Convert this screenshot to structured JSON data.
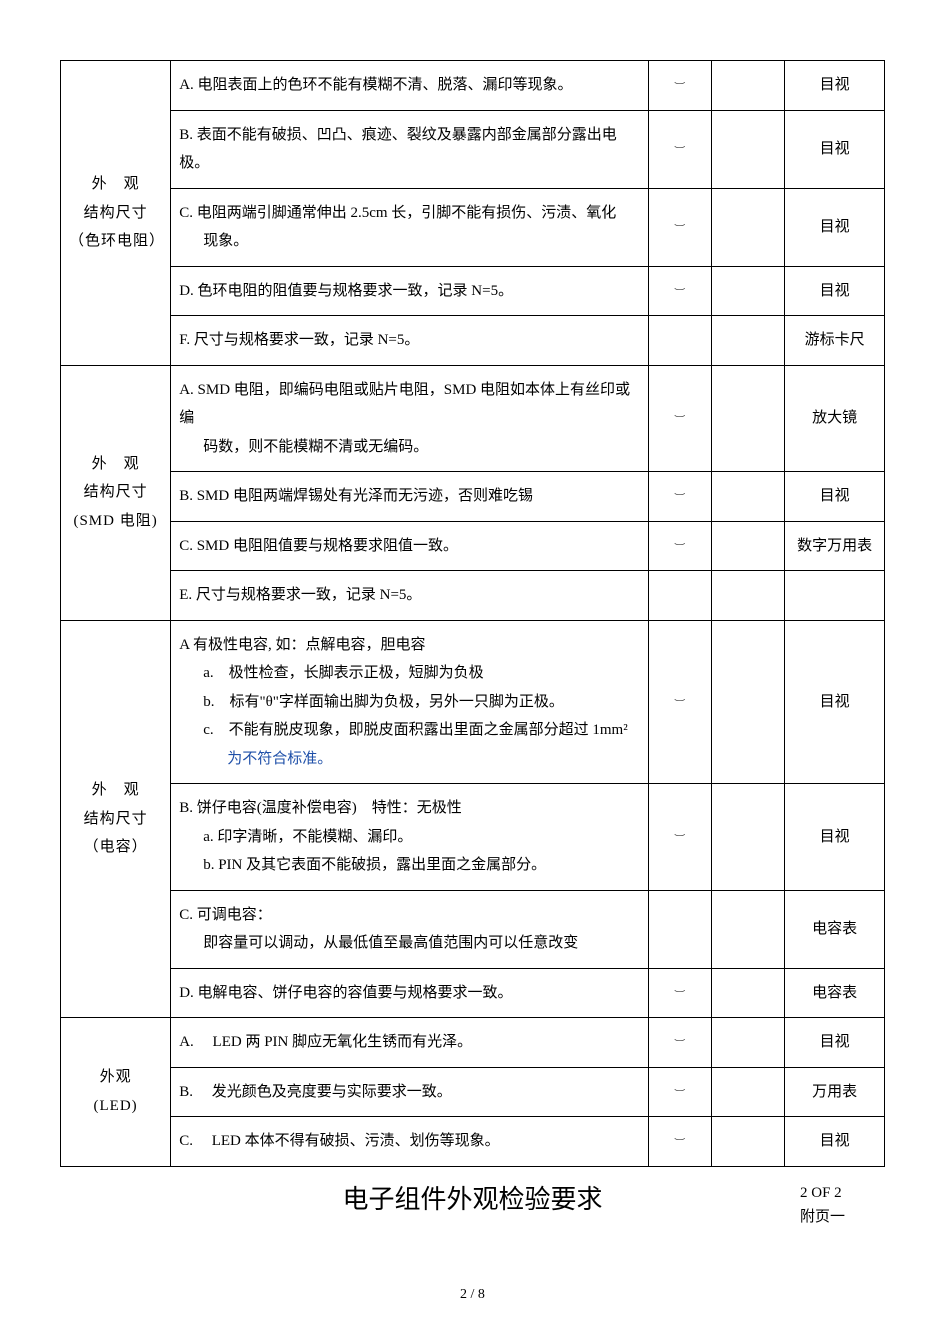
{
  "check_mark": "︶",
  "sections": [
    {
      "category_lines": [
        "外　观",
        "结构尺寸",
        "（色环电阻）"
      ],
      "rows": [
        {
          "desc_parts": [
            {
              "text": "A. 电阻表面上的色环不能有模糊不清、脱落、漏印等现象。"
            }
          ],
          "check": true,
          "method": "目视"
        },
        {
          "desc_parts": [
            {
              "text": "B. 表面不能有破损、凹凸、痕迹、裂纹及暴露内部金属部分露出电极。"
            }
          ],
          "check": true,
          "method": "目视"
        },
        {
          "desc_parts": [
            {
              "text": "C. 电阻两端引脚通常伸出 2.5cm 长，引脚不能有损伤、污渍、氧化"
            },
            {
              "text": "现象。",
              "cls": "sub-indent"
            }
          ],
          "check": true,
          "method": "目视"
        },
        {
          "desc_parts": [
            {
              "text": "D. 色环电阻的阻值要与规格要求一致，记录 N=5。"
            }
          ],
          "check": true,
          "method": "目视"
        },
        {
          "desc_parts": [
            {
              "text": "F. 尺寸与规格要求一致，记录 N=5。"
            }
          ],
          "check": false,
          "method": "游标卡尺"
        }
      ]
    },
    {
      "category_lines": [
        "外　观",
        "结构尺寸",
        "(SMD 电阻)"
      ],
      "rows": [
        {
          "desc_parts": [
            {
              "text": "A. SMD 电阻，即编码电阻或贴片电阻，SMD 电阻如本体上有丝印或编"
            },
            {
              "text": "码数，则不能模糊不清或无编码。",
              "cls": "sub-indent"
            }
          ],
          "check": true,
          "method": "放大镜"
        },
        {
          "desc_parts": [
            {
              "text": "B. SMD 电阻两端焊锡处有光泽而无污迹，否则难吃锡"
            }
          ],
          "check": true,
          "method": "目视"
        },
        {
          "desc_parts": [
            {
              "text": "C. SMD 电阻阻值要与规格要求阻值一致。"
            }
          ],
          "check": true,
          "method": "数字万用表"
        },
        {
          "desc_parts": [
            {
              "text": "E. 尺寸与规格要求一致，记录 N=5。"
            }
          ],
          "check": false,
          "method": ""
        }
      ]
    },
    {
      "category_lines": [
        "外　观",
        "结构尺寸",
        "（电容）"
      ],
      "rows": [
        {
          "desc_parts": [
            {
              "text": "A 有极性电容, 如：点解电容，胆电容"
            },
            {
              "text": "a.　极性检查，长脚表示正极，短脚为负极",
              "cls": "sub-indent"
            },
            {
              "text": "b.　标有\"θ\"字样面输出脚为负极，另外一只脚为正极。",
              "cls": "sub-indent"
            },
            {
              "text": "c.　不能有脱皮现象，即脱皮面积露出里面之金属部分超过 1mm²",
              "cls": "sub-indent"
            },
            {
              "text": "为不符合标准。",
              "cls": "blue-note"
            }
          ],
          "check": true,
          "method": "目视"
        },
        {
          "desc_parts": [
            {
              "text": "B. 饼仔电容(温度补偿电容)　特性：无极性"
            },
            {
              "text": "a. 印字清晰，不能模糊、漏印。",
              "cls": "sub-indent"
            },
            {
              "text": "b. PIN 及其它表面不能破损，露出里面之金属部分。",
              "cls": "sub-indent"
            }
          ],
          "check": true,
          "method": "目视"
        },
        {
          "desc_parts": [
            {
              "text": "C. 可调电容："
            },
            {
              "text": "即容量可以调动，从最低值至最高值范围内可以任意改变",
              "cls": "sub-indent"
            }
          ],
          "check": false,
          "method": "电容表"
        },
        {
          "desc_parts": [
            {
              "text": "D. 电解电容、饼仔电容的容值要与规格要求一致。"
            }
          ],
          "check": true,
          "method": "电容表"
        }
      ]
    },
    {
      "category_lines": [
        "外观",
        "(LED)"
      ],
      "rows": [
        {
          "desc_parts": [
            {
              "text": "A.　 LED 两 PIN 脚应无氧化生锈而有光泽。"
            }
          ],
          "check": true,
          "method": "目视"
        },
        {
          "desc_parts": [
            {
              "text": "B.　 发光颜色及亮度要与实际要求一致。"
            }
          ],
          "check": true,
          "method": "万用表"
        },
        {
          "desc_parts": [
            {
              "text": "C.　 LED 本体不得有破损、污渍、划伤等现象。"
            }
          ],
          "check": true,
          "method": "目视"
        }
      ]
    }
  ],
  "footer": {
    "title": "电子组件外观检验要求",
    "page_x_of_y": "2 OF 2",
    "appendix": "附页一",
    "page_fraction": "2 / 8"
  }
}
